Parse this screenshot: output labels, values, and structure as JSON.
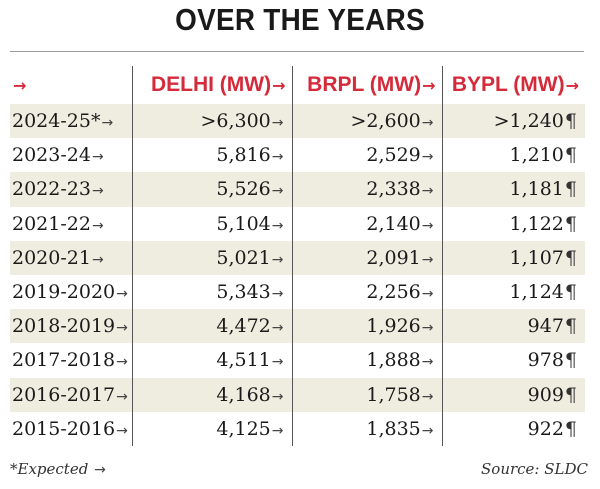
{
  "title": "OVER THE YEARS",
  "table": {
    "header_lead": "→",
    "headers": [
      "DELHI (MW)",
      "BRPL (MW)",
      "BYPL (MW)"
    ],
    "rows": [
      {
        "year": "2024-25*",
        "delhi": ">6,300",
        "brpl": ">2,600",
        "bypl": ">1,240"
      },
      {
        "year": "2023-24",
        "delhi": "5,816",
        "brpl": "2,529",
        "bypl": "1,210"
      },
      {
        "year": "2022-23",
        "delhi": "5,526",
        "brpl": "2,338",
        "bypl": "1,181"
      },
      {
        "year": "2021-22",
        "delhi": "5,104",
        "brpl": "2,140",
        "bypl": "1,122"
      },
      {
        "year": "2020-21",
        "delhi": "5,021",
        "brpl": "2,091",
        "bypl": "1,107"
      },
      {
        "year": "2019-2020",
        "delhi": "5,343",
        "brpl": "2,256",
        "bypl": "1,124"
      },
      {
        "year": "2018-2019",
        "delhi": "4,472",
        "brpl": "1,926",
        "bypl": "947"
      },
      {
        "year": "2017-2018",
        "delhi": "4,511",
        "brpl": "1,888",
        "bypl": "978"
      },
      {
        "year": "2016-2017",
        "delhi": "4,168",
        "brpl": "1,758",
        "bypl": "909"
      },
      {
        "year": "2015-2016",
        "delhi": "4,125",
        "brpl": "1,835",
        "bypl": "922"
      }
    ]
  },
  "footnote": "*Expected",
  "source": "Source: SLDC",
  "colors": {
    "header": "#d42a3a",
    "stripe": "#efede0",
    "text": "#1a1a1a"
  }
}
